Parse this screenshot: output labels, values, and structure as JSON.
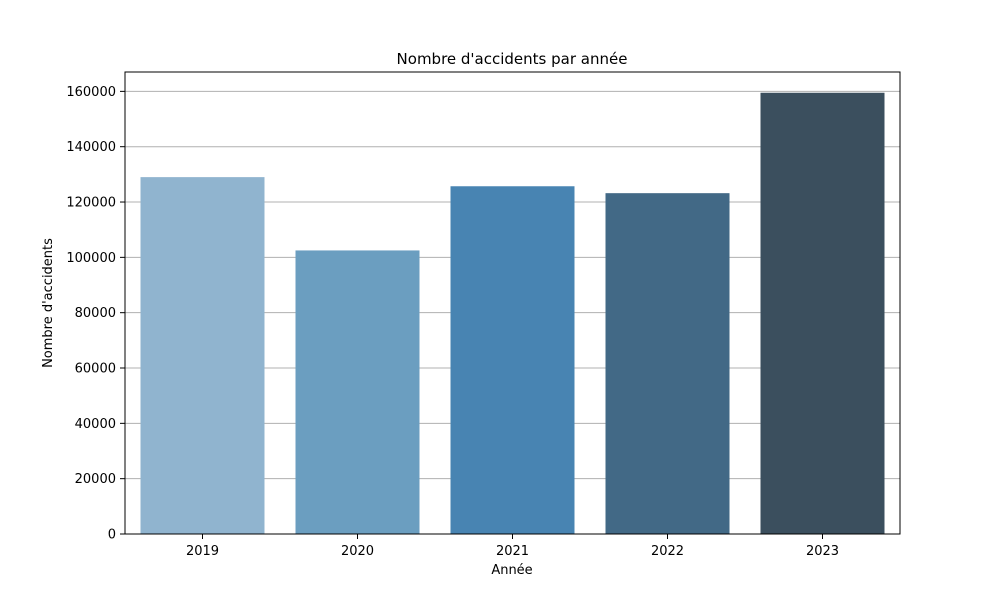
{
  "chart_data": {
    "type": "bar",
    "title": "Nombre d'accidents par année",
    "xlabel": "Année",
    "ylabel": "Nombre d'accidents",
    "categories": [
      "2019",
      "2020",
      "2021",
      "2022",
      "2023"
    ],
    "values": [
      129000,
      102500,
      125700,
      123200,
      159500
    ],
    "colors": [
      "#90b4cf",
      "#6b9ec0",
      "#4884b2",
      "#426986",
      "#3b4f5e"
    ],
    "ylim": [
      0,
      167000
    ],
    "yticks": [
      0,
      20000,
      40000,
      60000,
      80000,
      100000,
      120000,
      140000,
      160000
    ],
    "ytick_labels": [
      "0",
      "20000",
      "40000",
      "60000",
      "80000",
      "100000",
      "120000",
      "140000",
      "160000"
    ],
    "grid": "horizontal",
    "grid_color": "#b0b0b0",
    "legend": "none"
  }
}
